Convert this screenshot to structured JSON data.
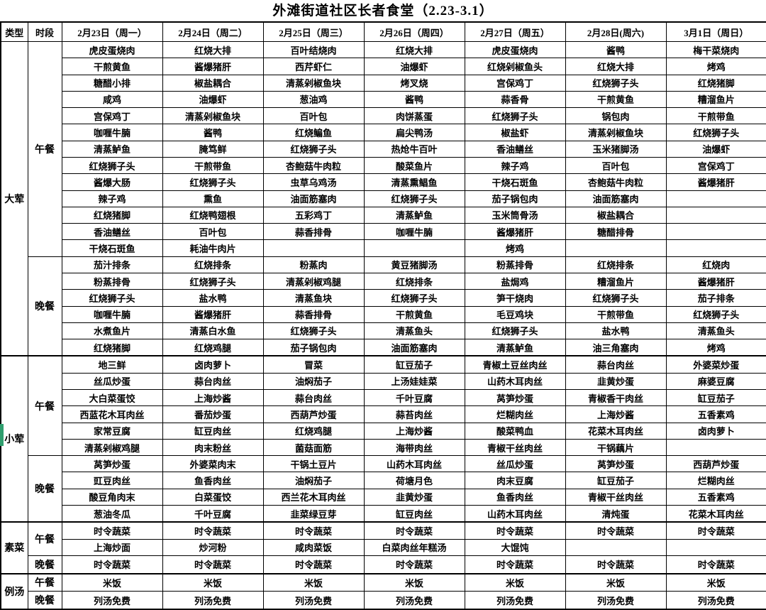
{
  "title": "外滩街道社区长者食堂（2.23-3.1）",
  "accent": {
    "green_marker_color": "#2f9e6e"
  },
  "table": {
    "corner_headers": [
      "类型",
      "时段"
    ],
    "day_headers": [
      "2月23日（周一）",
      "2月24日（周二）",
      "2月25日（周三）",
      "2月26日（周四）",
      "2月27日（周五）",
      "2月28日(周六)",
      "3月1日（周日）"
    ],
    "sections": [
      {
        "type": "大荤",
        "meals": [
          {
            "period": "午餐",
            "rows": [
              [
                "虎皮蛋烧肉",
                "红烧大排",
                "百叶结烧肉",
                "红烧大排",
                "虎皮蛋烧肉",
                "酱鸭",
                "梅干菜烧肉"
              ],
              [
                "干煎黄鱼",
                "酱爆猪肝",
                "西芹虾仁",
                "油爆虾",
                "红烧剁椒鱼头",
                "红烧大排",
                "烤鸡"
              ],
              [
                "糖醋小排",
                "椒盐耦合",
                "清蒸剁椒鱼块",
                "烤叉烧",
                "宫保鸡丁",
                "红烧狮子头",
                "红烧猪脚"
              ],
              [
                "咸鸡",
                "油爆虾",
                "葱油鸡",
                "酱鸭",
                "蒜香骨",
                "干煎黄鱼",
                "糟溜鱼片"
              ],
              [
                "宫保鸡丁",
                "清蒸剁椒鱼块",
                "百叶包",
                "肉饼蒸蛋",
                "红烧狮子头",
                "锅包肉",
                "干煎带鱼"
              ],
              [
                "咖喱牛腩",
                "酱鸭",
                "红烧鳊鱼",
                "扁尖鸭汤",
                "椒盐虾",
                "清蒸剁椒鱼块",
                "红烧狮子头"
              ],
              [
                "清蒸鲈鱼",
                "腌笃鲜",
                "红烧狮子头",
                "热炝牛百叶",
                "香油鳝丝",
                "玉米猪脚汤",
                "油爆虾"
              ],
              [
                "红烧狮子头",
                "干煎带鱼",
                "杏鲍菇牛肉粒",
                "酸菜鱼片",
                "辣子鸡",
                "百叶包",
                "宫保鸡丁"
              ],
              [
                "酱爆大肠",
                "红烧狮子头",
                "虫草乌鸡汤",
                "清蒸熏鲳鱼",
                "干烧石斑鱼",
                "杏鲍菇牛肉粒",
                "酱爆猪肝"
              ],
              [
                "辣子鸡",
                "熏鱼",
                "油面筋塞肉",
                "红烧狮子头",
                "茄子锅包肉",
                "油面筋塞肉",
                ""
              ],
              [
                "红烧猪脚",
                "红烧鸭翅根",
                "五彩鸡丁",
                "清蒸鲈鱼",
                "玉米筒骨汤",
                "椒盐耦合",
                ""
              ],
              [
                "香油鳝丝",
                "百叶包",
                "蒜香排骨",
                "咖喱牛腩",
                "酱爆猪肝",
                "糖醋排骨",
                ""
              ],
              [
                "干烧石斑鱼",
                "耗油牛肉片",
                "",
                "",
                "烤鸡",
                "",
                ""
              ]
            ]
          },
          {
            "period": "晚餐",
            "rows": [
              [
                "茄汁排条",
                "红烧排条",
                "粉蒸肉",
                "黄豆猪脚汤",
                "粉蒸排骨",
                "红烧排条",
                "红烧肉"
              ],
              [
                "粉蒸排骨",
                "红烧狮子头",
                "清蒸剁椒鸡腿",
                "红烧排条",
                "盐焗鸡",
                "糟溜鱼片",
                "酱爆猪肝"
              ],
              [
                "红烧狮子头",
                "盐水鸭",
                "清蒸鱼块",
                "红烧狮子头",
                "笋干烧肉",
                "红烧狮子头",
                "茄子排条"
              ],
              [
                "咖喱牛腩",
                "酱爆猪肝",
                "蒜香排骨",
                "干煎黄鱼",
                "毛豆鸡块",
                "干煎带鱼",
                "红烧狮子头"
              ],
              [
                "水煮鱼片",
                "清蒸白水鱼",
                "红烧狮子头",
                "清蒸鱼头",
                "红烧狮子头",
                "盐水鸭",
                "清蒸鱼头"
              ],
              [
                "红烧猪脚",
                "红烧鸡腿",
                "茄子锅包肉",
                "油面筋塞肉",
                "清蒸鲈鱼",
                "油三角塞肉",
                "烤鸡"
              ]
            ]
          }
        ]
      },
      {
        "type": "小荤",
        "meals": [
          {
            "period": "午餐",
            "rows": [
              [
                "地三鲜",
                "卤肉萝卜",
                "冒菜",
                "缸豆茄子",
                "青椒土豆丝肉丝",
                "蒜台肉丝",
                "外婆菜炒蛋"
              ],
              [
                "丝瓜炒蛋",
                "蒜台肉丝",
                "油焖茄子",
                "上汤娃娃菜",
                "山药木耳肉丝",
                "韭黄炒蛋",
                "麻婆豆腐"
              ],
              [
                "大白菜蛋饺",
                "上海炒酱",
                "蒜台肉丝",
                "千叶豆腐",
                "莴笋炒蛋",
                "青椒香干肉丝",
                "缸豆茄子"
              ],
              [
                "西蓝花木耳肉丝",
                "番茄炒蛋",
                "西葫芦炒蛋",
                "蒜苔肉丝",
                "烂糊肉丝",
                "上海炒酱",
                "五香素鸡"
              ],
              [
                "家常豆腐",
                "缸豆肉丝",
                "红烧鸡腿",
                "上海炒酱",
                "酸菜鸭血",
                "花菜木耳肉丝",
                "卤肉萝卜"
              ],
              [
                "清蒸剁椒鸡腿",
                "肉末粉丝",
                "菌菇面筋",
                "海带肉丝",
                "青椒干丝肉丝",
                "干锅藕片",
                ""
              ]
            ]
          },
          {
            "period": "晚餐",
            "rows": [
              [
                "莴笋炒蛋",
                "外婆菜肉末",
                "干锅土豆片",
                "山药木耳肉丝",
                "丝瓜炒蛋",
                "莴笋炒蛋",
                "西葫芦炒蛋"
              ],
              [
                "豇豆肉丝",
                "鱼香肉丝",
                "油焖茄子",
                "荷塘月色",
                "肉末豆腐",
                "缸豆茄子",
                "烂糊肉丝"
              ],
              [
                "酸豆角肉末",
                "白菜蛋饺",
                "西兰花木耳肉丝",
                "韭黄炒蛋",
                "鱼香肉丝",
                "青椒干丝肉丝",
                "五香素鸡"
              ],
              [
                "葱油冬瓜",
                "千叶豆腐",
                "韭菜绿豆芽",
                "缸豆肉丝",
                "山药木耳肉丝",
                "清炖蛋",
                "花菜木耳肉丝"
              ]
            ]
          }
        ]
      },
      {
        "type": "素菜",
        "meals": [
          {
            "period": "午餐",
            "rows": [
              [
                "时令蔬菜",
                "时令蔬菜",
                "时令蔬菜",
                "时令蔬菜",
                "时令蔬菜",
                "时令蔬菜",
                "时令蔬菜"
              ],
              [
                "上海炒面",
                "炒河粉",
                "咸肉菜饭",
                "白菜肉丝年糕汤",
                "大馄饨",
                "",
                ""
              ]
            ]
          },
          {
            "period": "晚餐",
            "rows": [
              [
                "时令蔬菜",
                "时令蔬菜",
                "时令蔬菜",
                "时令蔬菜",
                "时令蔬菜",
                "时令蔬菜",
                "时令蔬菜"
              ]
            ]
          }
        ]
      },
      {
        "type": "例汤",
        "meals": [
          {
            "period": "午餐",
            "rows": [
              [
                "米饭",
                "米饭",
                "米饭",
                "米饭",
                "米饭",
                "米饭",
                "米饭"
              ]
            ]
          },
          {
            "period": "晚餐",
            "rows": [
              [
                "列汤免费",
                "列汤免费",
                "列汤免费",
                "列汤免费",
                "列汤免费",
                "列汤免费",
                "列汤免费"
              ]
            ]
          }
        ]
      }
    ]
  }
}
